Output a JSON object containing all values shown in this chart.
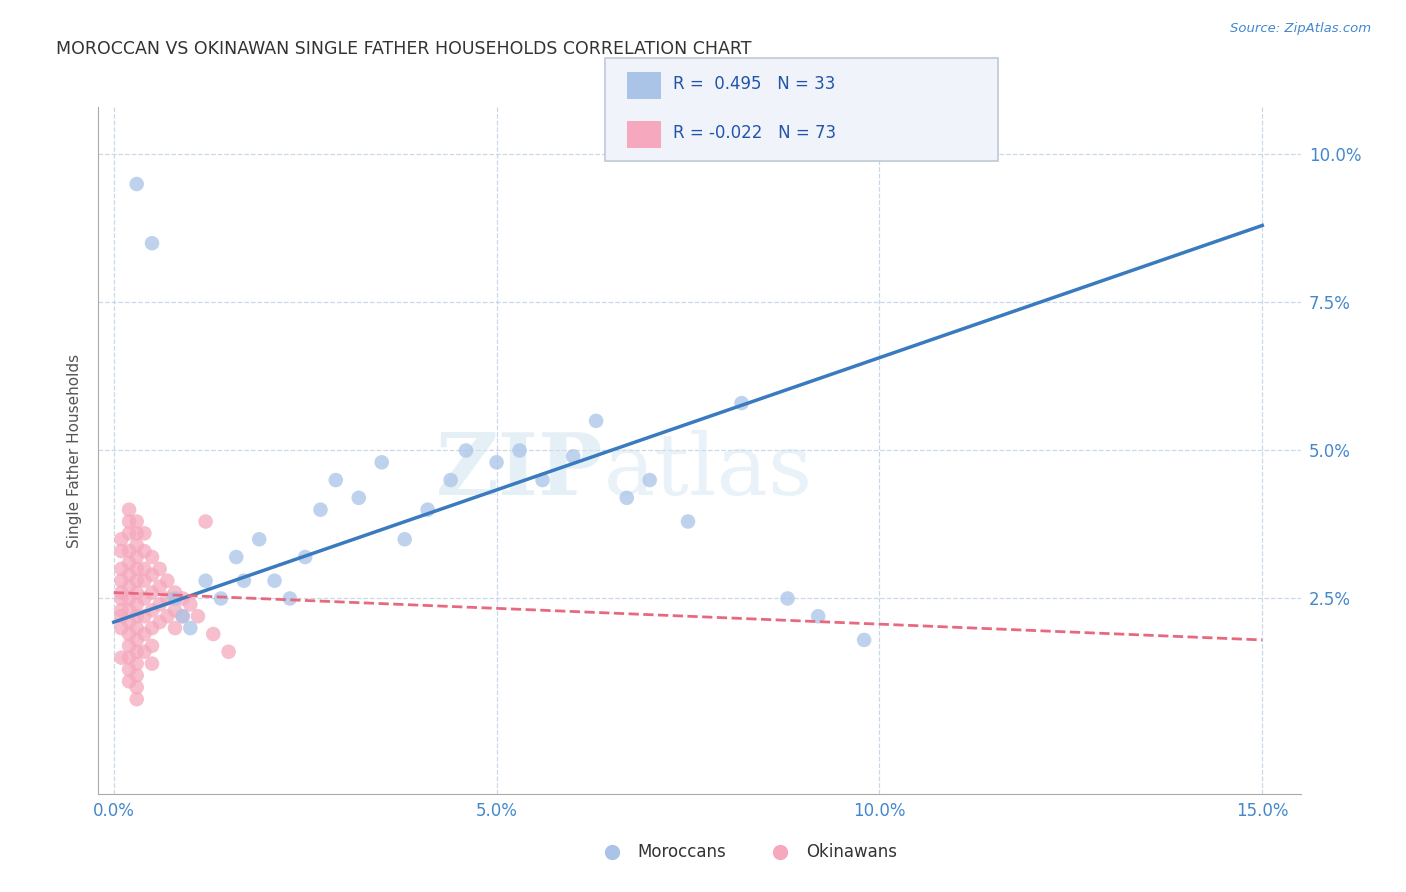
{
  "title": "MOROCCAN VS OKINAWAN SINGLE FATHER HOUSEHOLDS CORRELATION CHART",
  "source": "Source: ZipAtlas.com",
  "ylabel": "Single Father Households",
  "xlabel_moroccan": "Moroccans",
  "xlabel_okinawan": "Okinawans",
  "r_moroccan": 0.495,
  "n_moroccan": 33,
  "r_okinawan": -0.022,
  "n_okinawan": 73,
  "xlim": [
    -0.002,
    0.155
  ],
  "ylim": [
    -0.008,
    0.108
  ],
  "xticks": [
    0.0,
    0.05,
    0.1,
    0.15
  ],
  "xticklabels": [
    "0.0%",
    "5.0%",
    "10.0%",
    "15.0%"
  ],
  "yticks_right": [
    0.025,
    0.05,
    0.075,
    0.1
  ],
  "ytick_labels_right": [
    "2.5%",
    "5.0%",
    "7.5%",
    "10.0%"
  ],
  "moroccan_color": "#aac4e8",
  "okinawan_color": "#f5a8be",
  "moroccan_line_color": "#3a7abf",
  "okinawan_line_color": "#e8697d",
  "background_color": "#ffffff",
  "grid_color": "#c8d8e8",
  "watermark_text": "ZIP",
  "watermark_text2": "atlas",
  "moroccan_x": [
    0.003,
    0.005,
    0.008,
    0.009,
    0.01,
    0.012,
    0.014,
    0.016,
    0.017,
    0.019,
    0.021,
    0.023,
    0.025,
    0.027,
    0.029,
    0.032,
    0.035,
    0.038,
    0.041,
    0.044,
    0.046,
    0.05,
    0.053,
    0.056,
    0.06,
    0.063,
    0.067,
    0.07,
    0.075,
    0.082,
    0.088,
    0.092,
    0.098
  ],
  "moroccan_y": [
    0.095,
    0.085,
    0.025,
    0.022,
    0.02,
    0.028,
    0.025,
    0.032,
    0.028,
    0.035,
    0.028,
    0.025,
    0.032,
    0.04,
    0.045,
    0.042,
    0.048,
    0.035,
    0.04,
    0.045,
    0.05,
    0.048,
    0.05,
    0.045,
    0.049,
    0.055,
    0.042,
    0.045,
    0.038,
    0.058,
    0.025,
    0.022,
    0.018
  ],
  "moroccan_line_x0": 0.0,
  "moroccan_line_y0": 0.021,
  "moroccan_line_x1": 0.15,
  "moroccan_line_y1": 0.088,
  "okinawan_line_x0": 0.0,
  "okinawan_line_y0": 0.026,
  "okinawan_line_x1": 0.15,
  "okinawan_line_y1": 0.018,
  "okinawan_x": [
    0.001,
    0.001,
    0.001,
    0.001,
    0.001,
    0.001,
    0.001,
    0.001,
    0.001,
    0.001,
    0.002,
    0.002,
    0.002,
    0.002,
    0.002,
    0.002,
    0.002,
    0.002,
    0.002,
    0.002,
    0.002,
    0.002,
    0.002,
    0.002,
    0.002,
    0.003,
    0.003,
    0.003,
    0.003,
    0.003,
    0.003,
    0.003,
    0.003,
    0.003,
    0.003,
    0.003,
    0.003,
    0.003,
    0.003,
    0.003,
    0.003,
    0.004,
    0.004,
    0.004,
    0.004,
    0.004,
    0.004,
    0.004,
    0.004,
    0.005,
    0.005,
    0.005,
    0.005,
    0.005,
    0.005,
    0.005,
    0.006,
    0.006,
    0.006,
    0.006,
    0.007,
    0.007,
    0.007,
    0.008,
    0.008,
    0.008,
    0.009,
    0.009,
    0.01,
    0.011,
    0.012,
    0.013,
    0.015
  ],
  "okinawan_y": [
    0.035,
    0.033,
    0.03,
    0.028,
    0.026,
    0.025,
    0.023,
    0.022,
    0.02,
    0.015,
    0.04,
    0.038,
    0.036,
    0.033,
    0.031,
    0.029,
    0.027,
    0.025,
    0.023,
    0.021,
    0.019,
    0.017,
    0.015,
    0.013,
    0.011,
    0.038,
    0.036,
    0.034,
    0.032,
    0.03,
    0.028,
    0.026,
    0.024,
    0.022,
    0.02,
    0.018,
    0.016,
    0.014,
    0.012,
    0.01,
    0.008,
    0.036,
    0.033,
    0.03,
    0.028,
    0.025,
    0.022,
    0.019,
    0.016,
    0.032,
    0.029,
    0.026,
    0.023,
    0.02,
    0.017,
    0.014,
    0.03,
    0.027,
    0.024,
    0.021,
    0.028,
    0.025,
    0.022,
    0.026,
    0.023,
    0.02,
    0.025,
    0.022,
    0.024,
    0.022,
    0.038,
    0.019,
    0.016
  ]
}
